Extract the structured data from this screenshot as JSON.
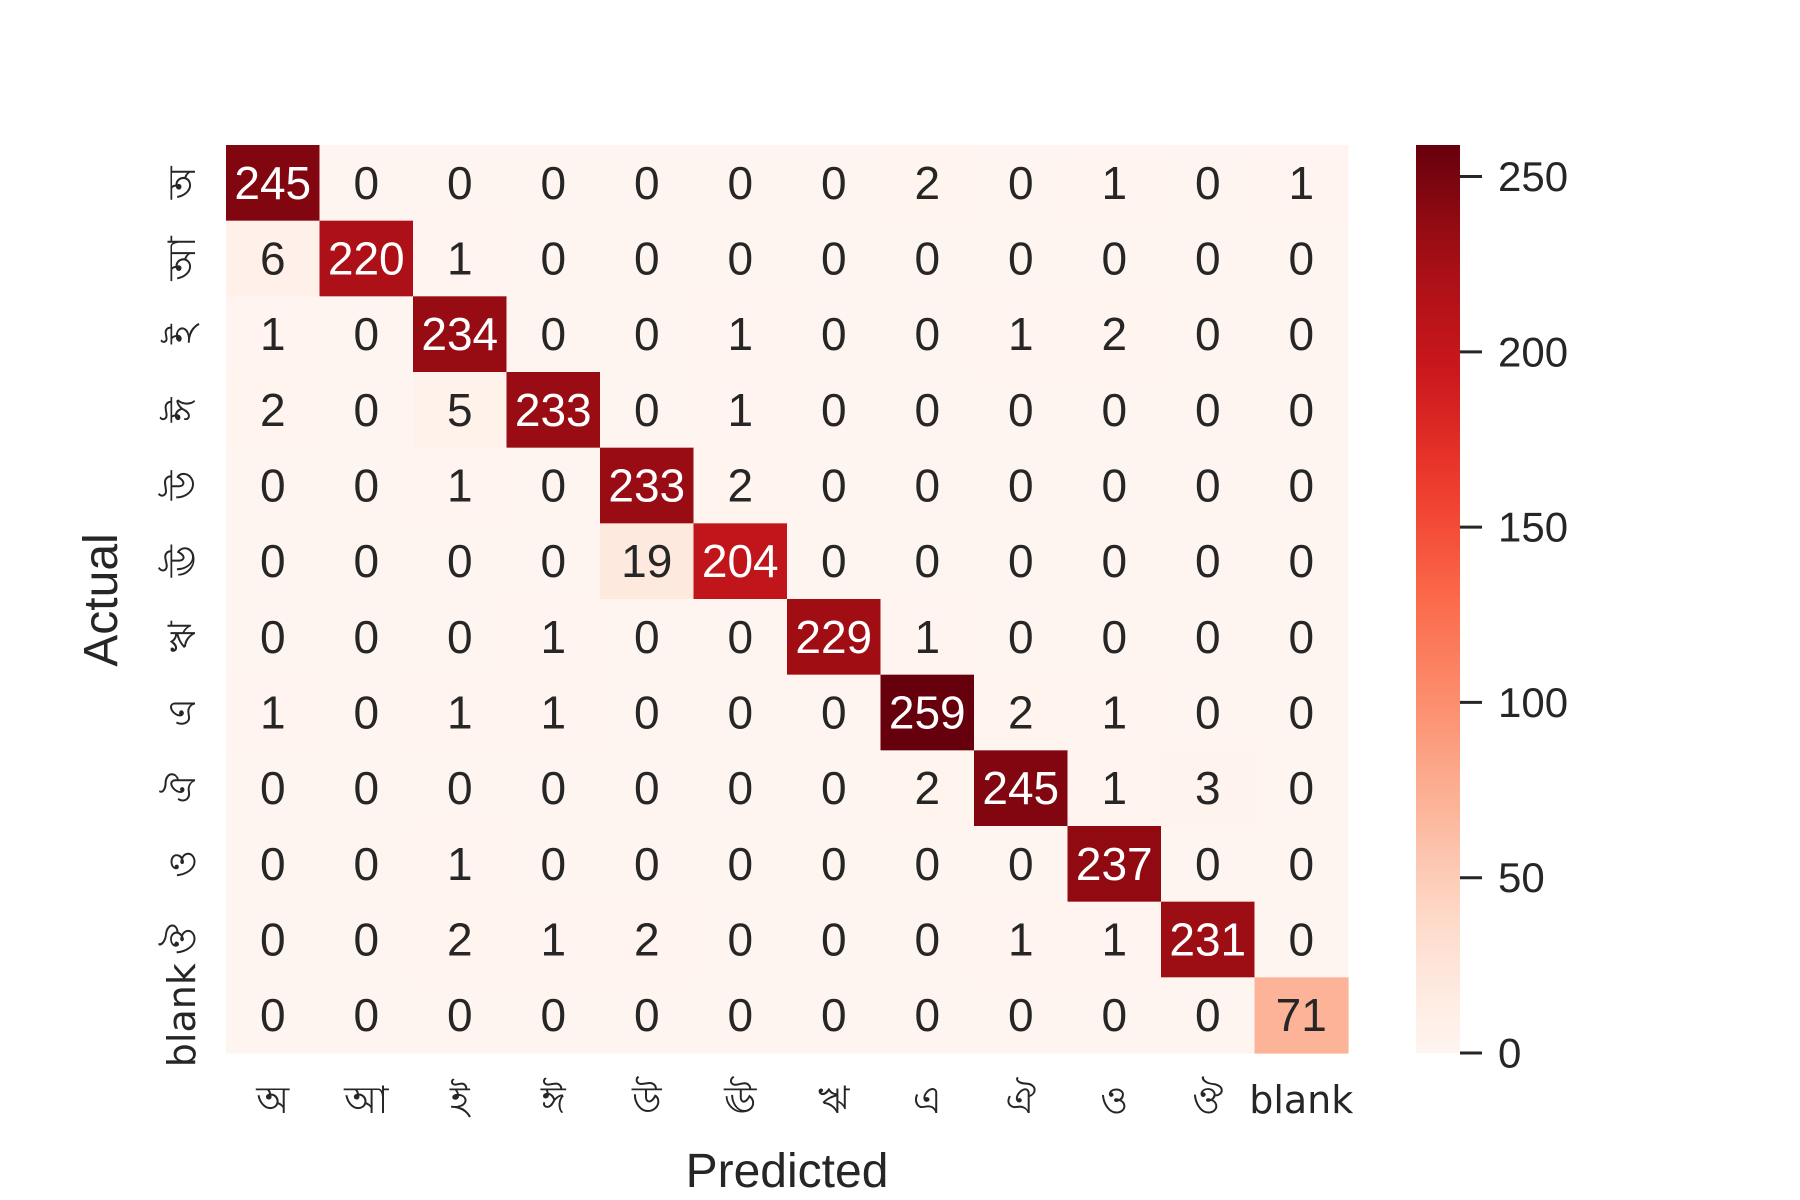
{
  "chart_data": {
    "type": "heatmap",
    "title": "",
    "xlabel": "Predicted",
    "ylabel": "Actual",
    "x_categories": [
      "অ",
      "আ",
      "ই",
      "ঈ",
      "উ",
      "ঊ",
      "ঋ",
      "এ",
      "ঐ",
      "ও",
      "ঔ",
      "blank"
    ],
    "y_categories": [
      "অ",
      "আ",
      "ই",
      "ঈ",
      "উ",
      "ঊ",
      "ঋ",
      "এ",
      "ঐ",
      "ও",
      "ঔ",
      "blank"
    ],
    "matrix": [
      [
        245,
        0,
        0,
        0,
        0,
        0,
        0,
        2,
        0,
        1,
        0,
        1
      ],
      [
        6,
        220,
        1,
        0,
        0,
        0,
        0,
        0,
        0,
        0,
        0,
        0
      ],
      [
        1,
        0,
        234,
        0,
        0,
        1,
        0,
        0,
        1,
        2,
        0,
        0
      ],
      [
        2,
        0,
        5,
        233,
        0,
        1,
        0,
        0,
        0,
        0,
        0,
        0
      ],
      [
        0,
        0,
        1,
        0,
        233,
        2,
        0,
        0,
        0,
        0,
        0,
        0
      ],
      [
        0,
        0,
        0,
        0,
        19,
        204,
        0,
        0,
        0,
        0,
        0,
        0
      ],
      [
        0,
        0,
        0,
        1,
        0,
        0,
        229,
        1,
        0,
        0,
        0,
        0
      ],
      [
        1,
        0,
        1,
        1,
        0,
        0,
        0,
        259,
        2,
        1,
        0,
        0
      ],
      [
        0,
        0,
        0,
        0,
        0,
        0,
        0,
        2,
        245,
        1,
        3,
        0
      ],
      [
        0,
        0,
        1,
        0,
        0,
        0,
        0,
        0,
        0,
        237,
        0,
        0
      ],
      [
        0,
        0,
        2,
        1,
        2,
        0,
        0,
        0,
        1,
        1,
        231,
        0
      ],
      [
        0,
        0,
        0,
        0,
        0,
        0,
        0,
        0,
        0,
        0,
        0,
        71
      ]
    ],
    "colormap": "Reds",
    "color_range": [
      0,
      259
    ],
    "colorbar_ticks": [
      0,
      50,
      100,
      150,
      200,
      250
    ],
    "grid": false
  }
}
